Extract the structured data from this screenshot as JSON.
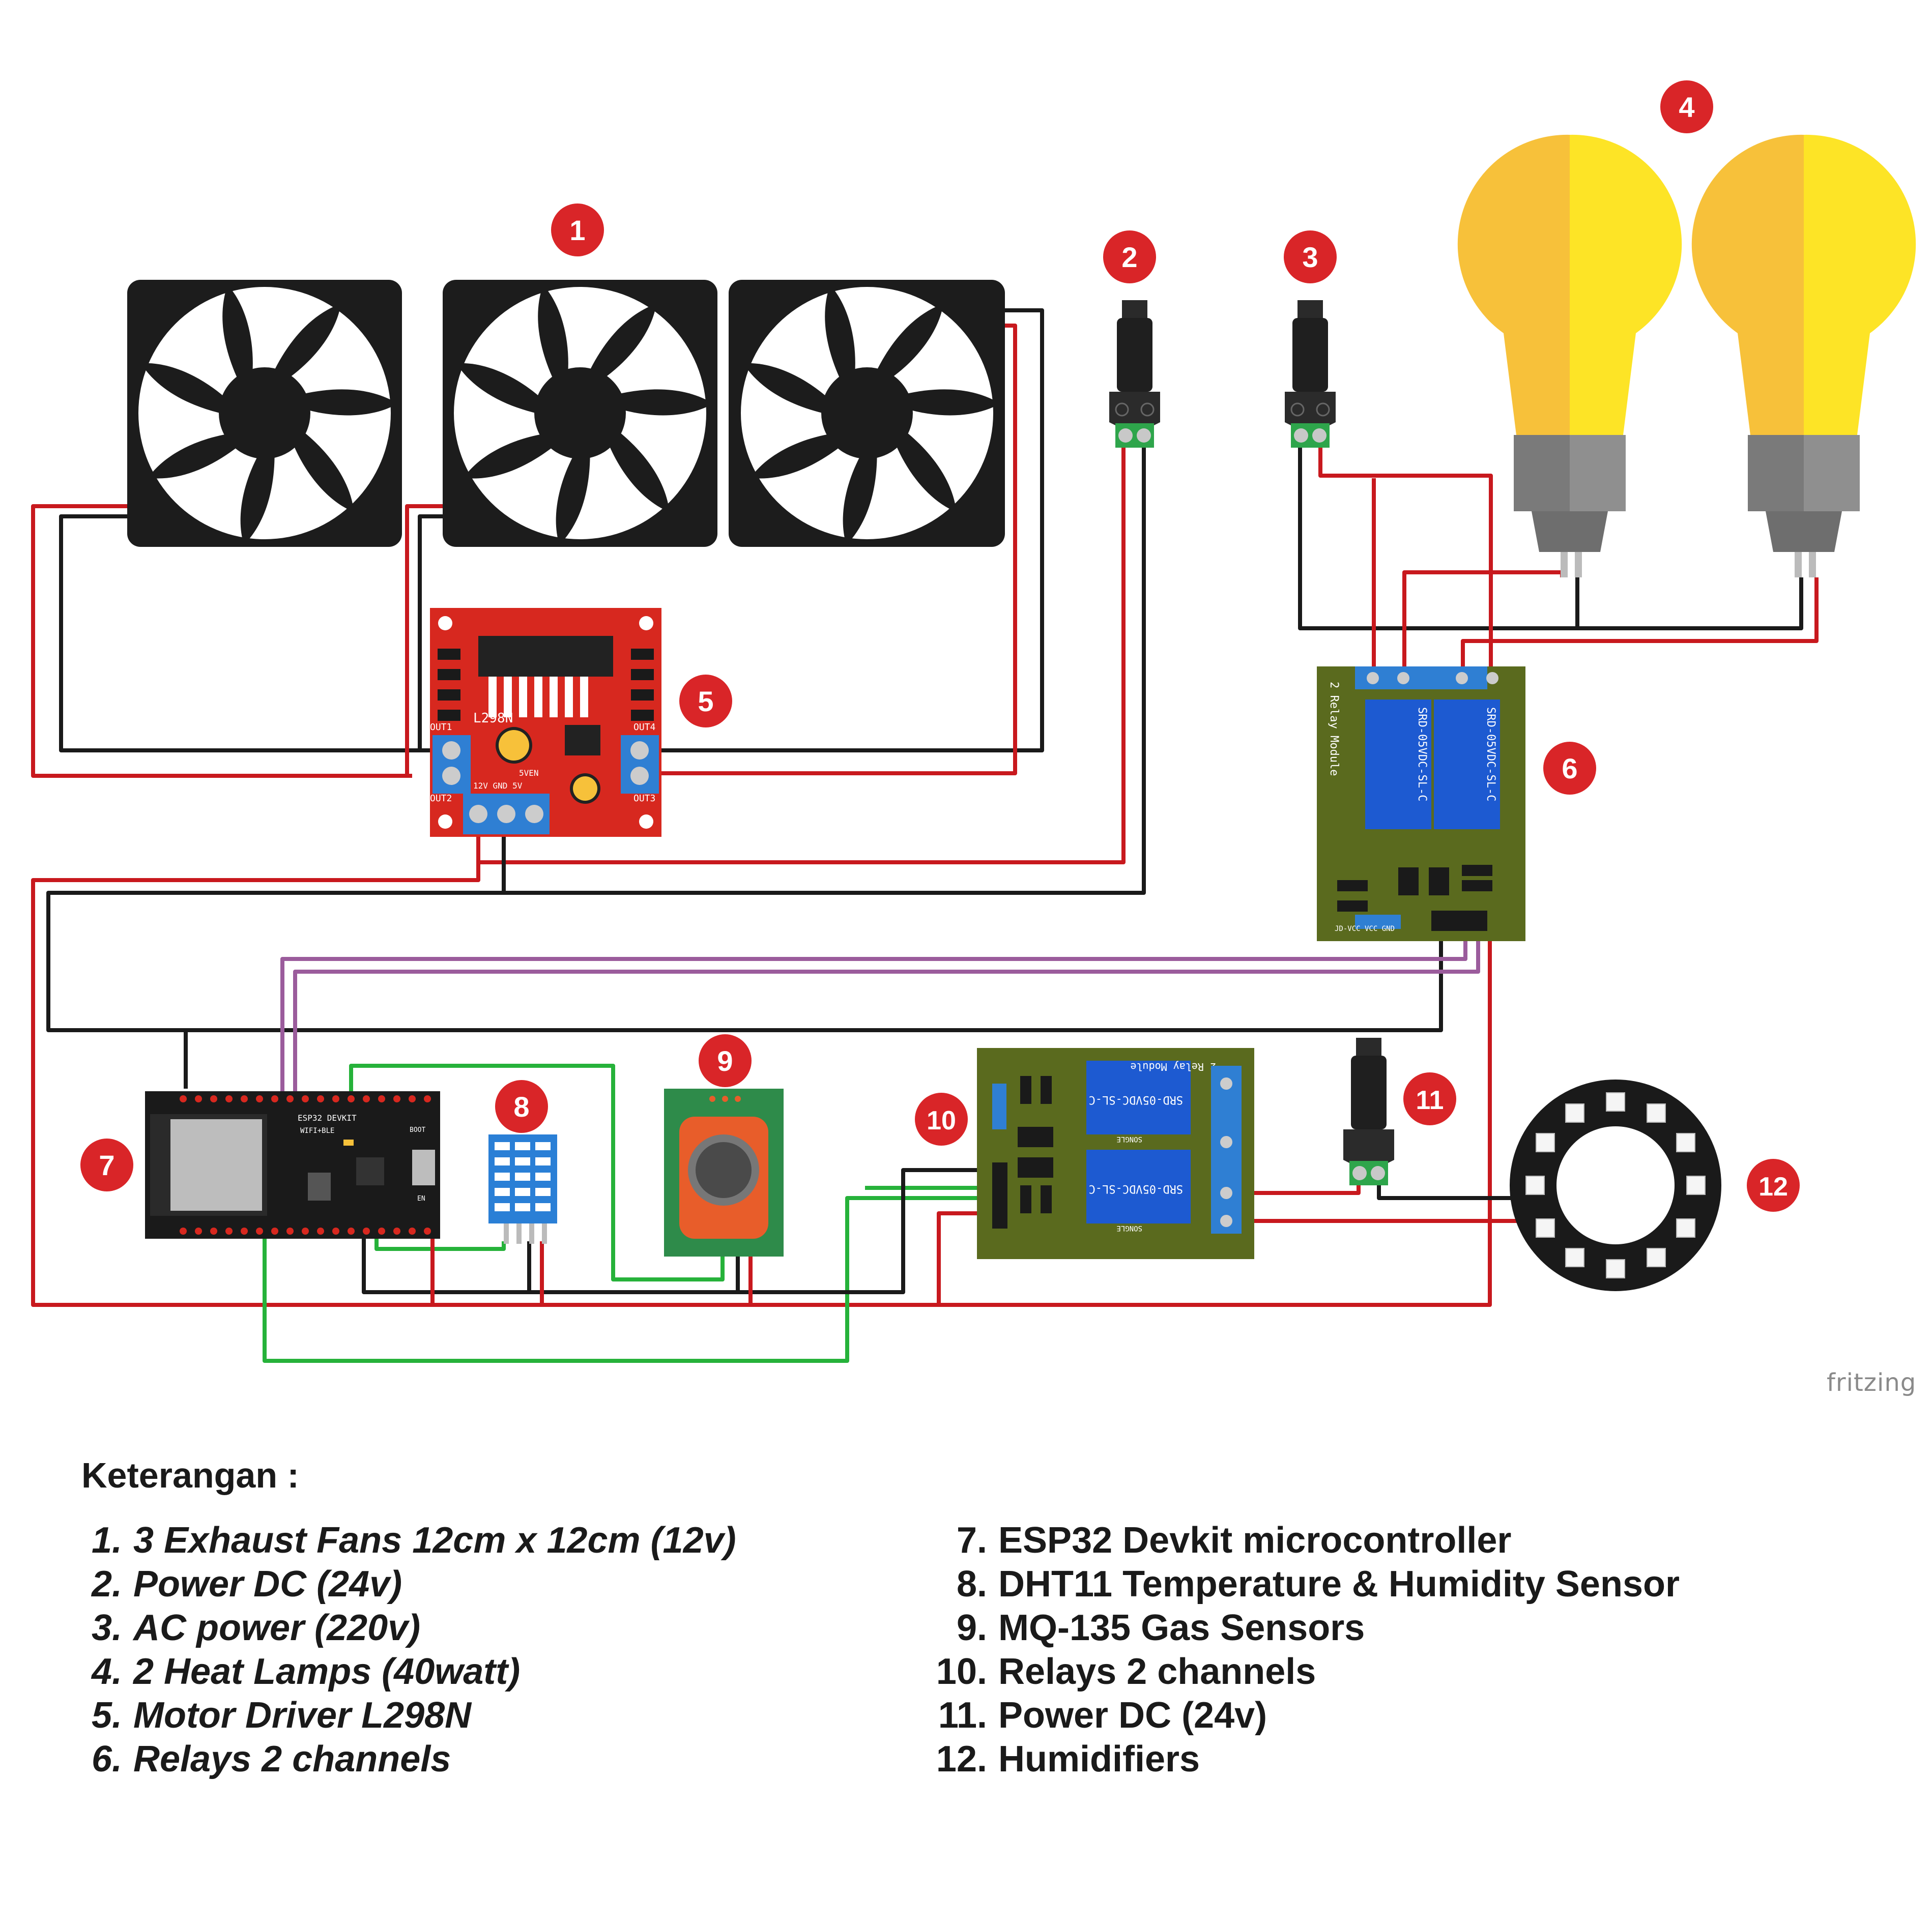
{
  "badges": [
    {
      "label": "1"
    },
    {
      "label": "2"
    },
    {
      "label": "3"
    },
    {
      "label": "4"
    },
    {
      "label": "5"
    },
    {
      "label": "6"
    },
    {
      "label": "7"
    },
    {
      "label": "8"
    },
    {
      "label": "9"
    },
    {
      "label": "10"
    },
    {
      "label": "11"
    },
    {
      "label": "12"
    }
  ],
  "board_labels": {
    "l298n": "L298N",
    "out1": "OUT1",
    "out2": "OUT2",
    "out3": "OUT3",
    "out4": "OUT4",
    "power_pins": "12V GND 5V",
    "enable": "5VEN",
    "relay_module": "2 Relay Module",
    "relay_part": "SRD-05VDC-SL-C",
    "relay_brand": "SONGLE",
    "relay_inputs": "JD-VCC VCC GND",
    "esp32_title": "ESP32 DEVKIT",
    "esp32_sub": "WIFI+BLE",
    "esp32_boot": "BOOT",
    "esp32_en": "EN"
  },
  "watermark": "fritzing",
  "legend": {
    "title": "Keterangan :",
    "left": [
      {
        "num": "1.",
        "text": "3 Exhaust Fans 12cm x 12cm (12v)"
      },
      {
        "num": "2.",
        "text": "Power DC (24v)"
      },
      {
        "num": "3.",
        "text": "AC power (220v)"
      },
      {
        "num": "4.",
        "text": "2 Heat Lamps (40watt)"
      },
      {
        "num": "5.",
        "text": "Motor Driver L298N"
      },
      {
        "num": "6.",
        "text": "Relays 2 channels"
      }
    ],
    "right": [
      {
        "num": "7.",
        "text": "ESP32 Devkit microcontroller"
      },
      {
        "num": "8.",
        "text": "DHT11 Temperature & Humidity Sensor"
      },
      {
        "num": "9.",
        "text": "MQ-135 Gas Sensors"
      },
      {
        "num": "10.",
        "text": "Relays 2 channels"
      },
      {
        "num": "11.",
        "text": "Power DC (24v)"
      },
      {
        "num": "12.",
        "text": "Humidifiers"
      }
    ]
  },
  "colors": {
    "badge": "#d92528",
    "wire_red": "#c8191e",
    "wire_black": "#1a1a1a",
    "wire_green": "#26b23a",
    "wire_purple": "#9b5c9c",
    "pcb_red": "#d7281f",
    "pcb_blue": "#2f7fd3",
    "relay_board": "#5a6a1e",
    "relay_blue": "#1d5ad1",
    "bulb_light": "#fde426",
    "bulb_dark": "#f7c13a"
  }
}
